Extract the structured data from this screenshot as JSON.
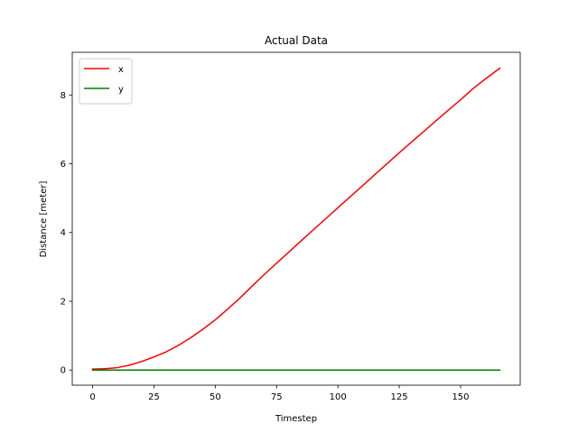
{
  "chart_data": {
    "type": "line",
    "title": "Actual Data",
    "xlabel": "Timestep",
    "ylabel": "Distance [meter]",
    "xlim": [
      -8.3,
      174.3
    ],
    "ylim": [
      -0.44,
      9.24
    ],
    "xticks": [
      0,
      25,
      50,
      75,
      100,
      125,
      150
    ],
    "yticks": [
      0,
      2,
      4,
      6,
      8
    ],
    "grid": false,
    "legend_position": "top-left",
    "series": [
      {
        "name": "x",
        "color": "#ff0000",
        "x": [
          0,
          5,
          10,
          15,
          20,
          25,
          30,
          35,
          40,
          45,
          50,
          55,
          60,
          65,
          70,
          75,
          80,
          85,
          90,
          95,
          100,
          105,
          110,
          115,
          120,
          125,
          130,
          135,
          140,
          145,
          150,
          155,
          160,
          166
        ],
        "y": [
          0.03,
          0.04,
          0.07,
          0.14,
          0.25,
          0.38,
          0.53,
          0.72,
          0.94,
          1.19,
          1.46,
          1.77,
          2.09,
          2.44,
          2.78,
          3.11,
          3.43,
          3.76,
          4.08,
          4.4,
          4.72,
          5.04,
          5.36,
          5.68,
          6.0,
          6.32,
          6.63,
          6.94,
          7.25,
          7.56,
          7.86,
          8.18,
          8.46,
          8.78
        ]
      },
      {
        "name": "y",
        "color": "#008000",
        "x": [
          0,
          166
        ],
        "y": [
          0.0,
          0.0
        ]
      }
    ]
  }
}
